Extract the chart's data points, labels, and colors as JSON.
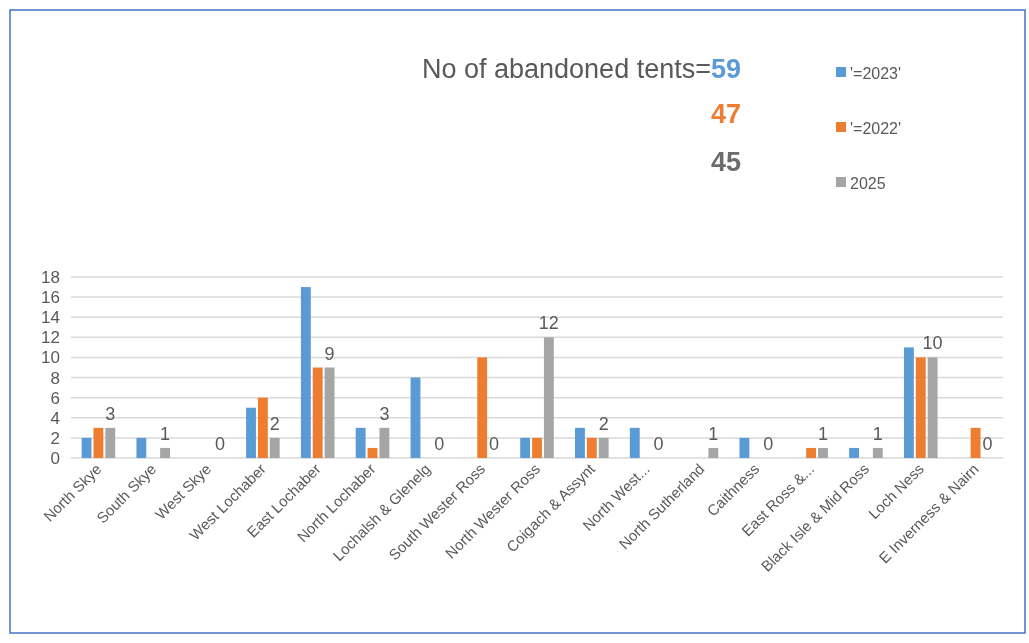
{
  "chart_data": {
    "type": "bar",
    "title": "No of abandoned tents=",
    "annotations": [
      "59",
      "47",
      "45"
    ],
    "categories": [
      "North Skye",
      "South Skye",
      "West Skye",
      "West Lochaber",
      "East Lochaber",
      "North Lochaber",
      "Lochalsh & Glenelg",
      "South Wester Ross",
      "North Wester Ross",
      "Coigach & Assynt",
      "North West...",
      "North Sutherland",
      "Caithness",
      "East Ross &...",
      "Black Isle & Mid Ross",
      "Loch Ness",
      "E Inverness & Nairn"
    ],
    "series": [
      {
        "name": "'=2023'",
        "color": "#5b9bd5",
        "values": [
          2,
          2,
          0,
          5,
          17,
          3,
          8,
          0,
          2,
          3,
          3,
          0,
          2,
          0,
          1,
          11,
          0
        ]
      },
      {
        "name": "'=2022'",
        "color": "#ed7d31",
        "values": [
          3,
          0,
          0,
          6,
          9,
          1,
          0,
          10,
          2,
          2,
          0,
          0,
          0,
          1,
          0,
          10,
          3
        ]
      },
      {
        "name": "2025",
        "color": "#a5a5a5",
        "values": [
          3,
          1,
          0,
          2,
          9,
          3,
          0,
          0,
          12,
          2,
          0,
          1,
          0,
          1,
          1,
          10,
          0
        ],
        "value_labels": [
          "3",
          "1",
          "0",
          "2",
          "9",
          "3",
          "0",
          "0",
          "12",
          "2",
          "0",
          "1",
          "0",
          "1",
          "1",
          "10",
          "0"
        ]
      }
    ],
    "ylim": [
      0,
      18
    ],
    "yticks": [
      0,
      2,
      4,
      6,
      8,
      10,
      12,
      14,
      16,
      18
    ],
    "grid": "y",
    "legend": "top right"
  }
}
